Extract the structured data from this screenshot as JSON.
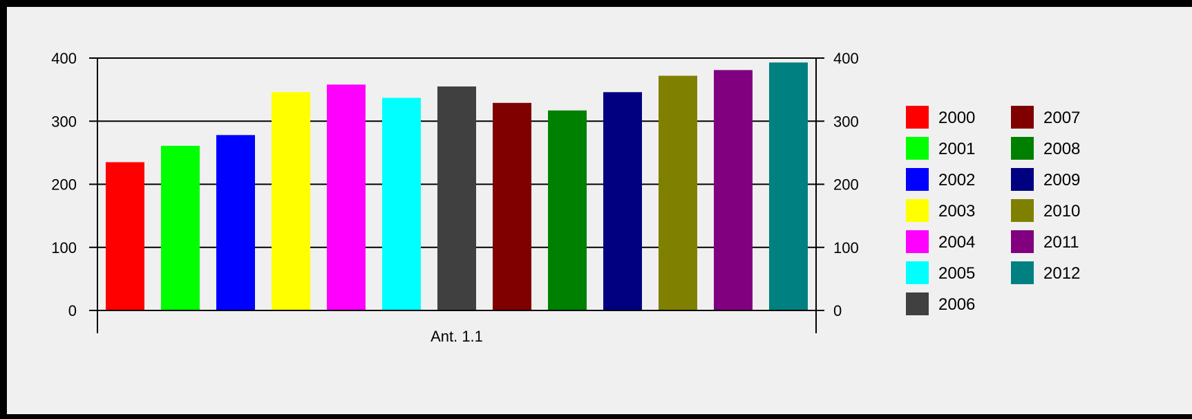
{
  "chart_data": {
    "type": "bar",
    "x_category_label": "Ant. 1.1",
    "series": [
      {
        "name": "2000",
        "color": "#ff0000",
        "values": [
          235
        ]
      },
      {
        "name": "2001",
        "color": "#00ff00",
        "values": [
          261
        ]
      },
      {
        "name": "2002",
        "color": "#0000ff",
        "values": [
          278
        ]
      },
      {
        "name": "2003",
        "color": "#ffff00",
        "values": [
          346
        ]
      },
      {
        "name": "2004",
        "color": "#ff00ff",
        "values": [
          358
        ]
      },
      {
        "name": "2005",
        "color": "#00ffff",
        "values": [
          337
        ]
      },
      {
        "name": "2006",
        "color": "#404040",
        "values": [
          355
        ]
      },
      {
        "name": "2007",
        "color": "#800000",
        "values": [
          329
        ]
      },
      {
        "name": "2008",
        "color": "#008000",
        "values": [
          317
        ]
      },
      {
        "name": "2009",
        "color": "#000080",
        "values": [
          346
        ]
      },
      {
        "name": "2010",
        "color": "#808000",
        "values": [
          372
        ]
      },
      {
        "name": "2011",
        "color": "#800080",
        "values": [
          381
        ]
      },
      {
        "name": "2012",
        "color": "#008080",
        "values": [
          393
        ]
      }
    ],
    "ylim": [
      0,
      400
    ],
    "y_ticks": [
      "0",
      "100",
      "200",
      "300",
      "400"
    ],
    "grid": true,
    "right_axis_mirror": true,
    "legend_position": "right",
    "title": "",
    "xlabel": "",
    "ylabel": ""
  }
}
